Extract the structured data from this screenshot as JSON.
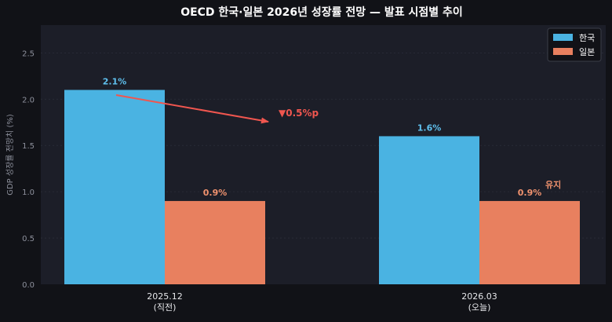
{
  "chart_data": {
    "type": "bar",
    "title": "OECD 한국·일본 2026년 성장률 전망 — 발표 시점별 추이",
    "ylabel": "GDP 성장률 전망치 (%)",
    "xlabel": "",
    "ylim": [
      0,
      2.8
    ],
    "yticks": [
      "0.0",
      "0.5",
      "1.0",
      "1.5",
      "2.0",
      "2.5"
    ],
    "ytick_values": [
      0,
      0.5,
      1.0,
      1.5,
      2.0,
      2.5
    ],
    "grid": true,
    "legend_position": "top-right",
    "categories": [
      {
        "line1": "2025.12",
        "line2": "(직전)"
      },
      {
        "line1": "2026.03",
        "line2": "(오늘)"
      }
    ],
    "series": [
      {
        "name": "한국",
        "color": "#4ab3e2",
        "label_color": "#5fc0ee",
        "values": [
          2.1,
          1.6
        ],
        "labels": [
          "2.1%",
          "1.6%"
        ]
      },
      {
        "name": "일본",
        "color": "#e8805f",
        "label_color": "#f0926e",
        "values": [
          0.9,
          0.9
        ],
        "labels": [
          "0.9%",
          "0.9%"
        ]
      }
    ],
    "annotations": [
      {
        "text": "▼0.5%p",
        "color": "#f0564f"
      },
      {
        "text": "유지",
        "color": "#f0926e"
      }
    ]
  }
}
